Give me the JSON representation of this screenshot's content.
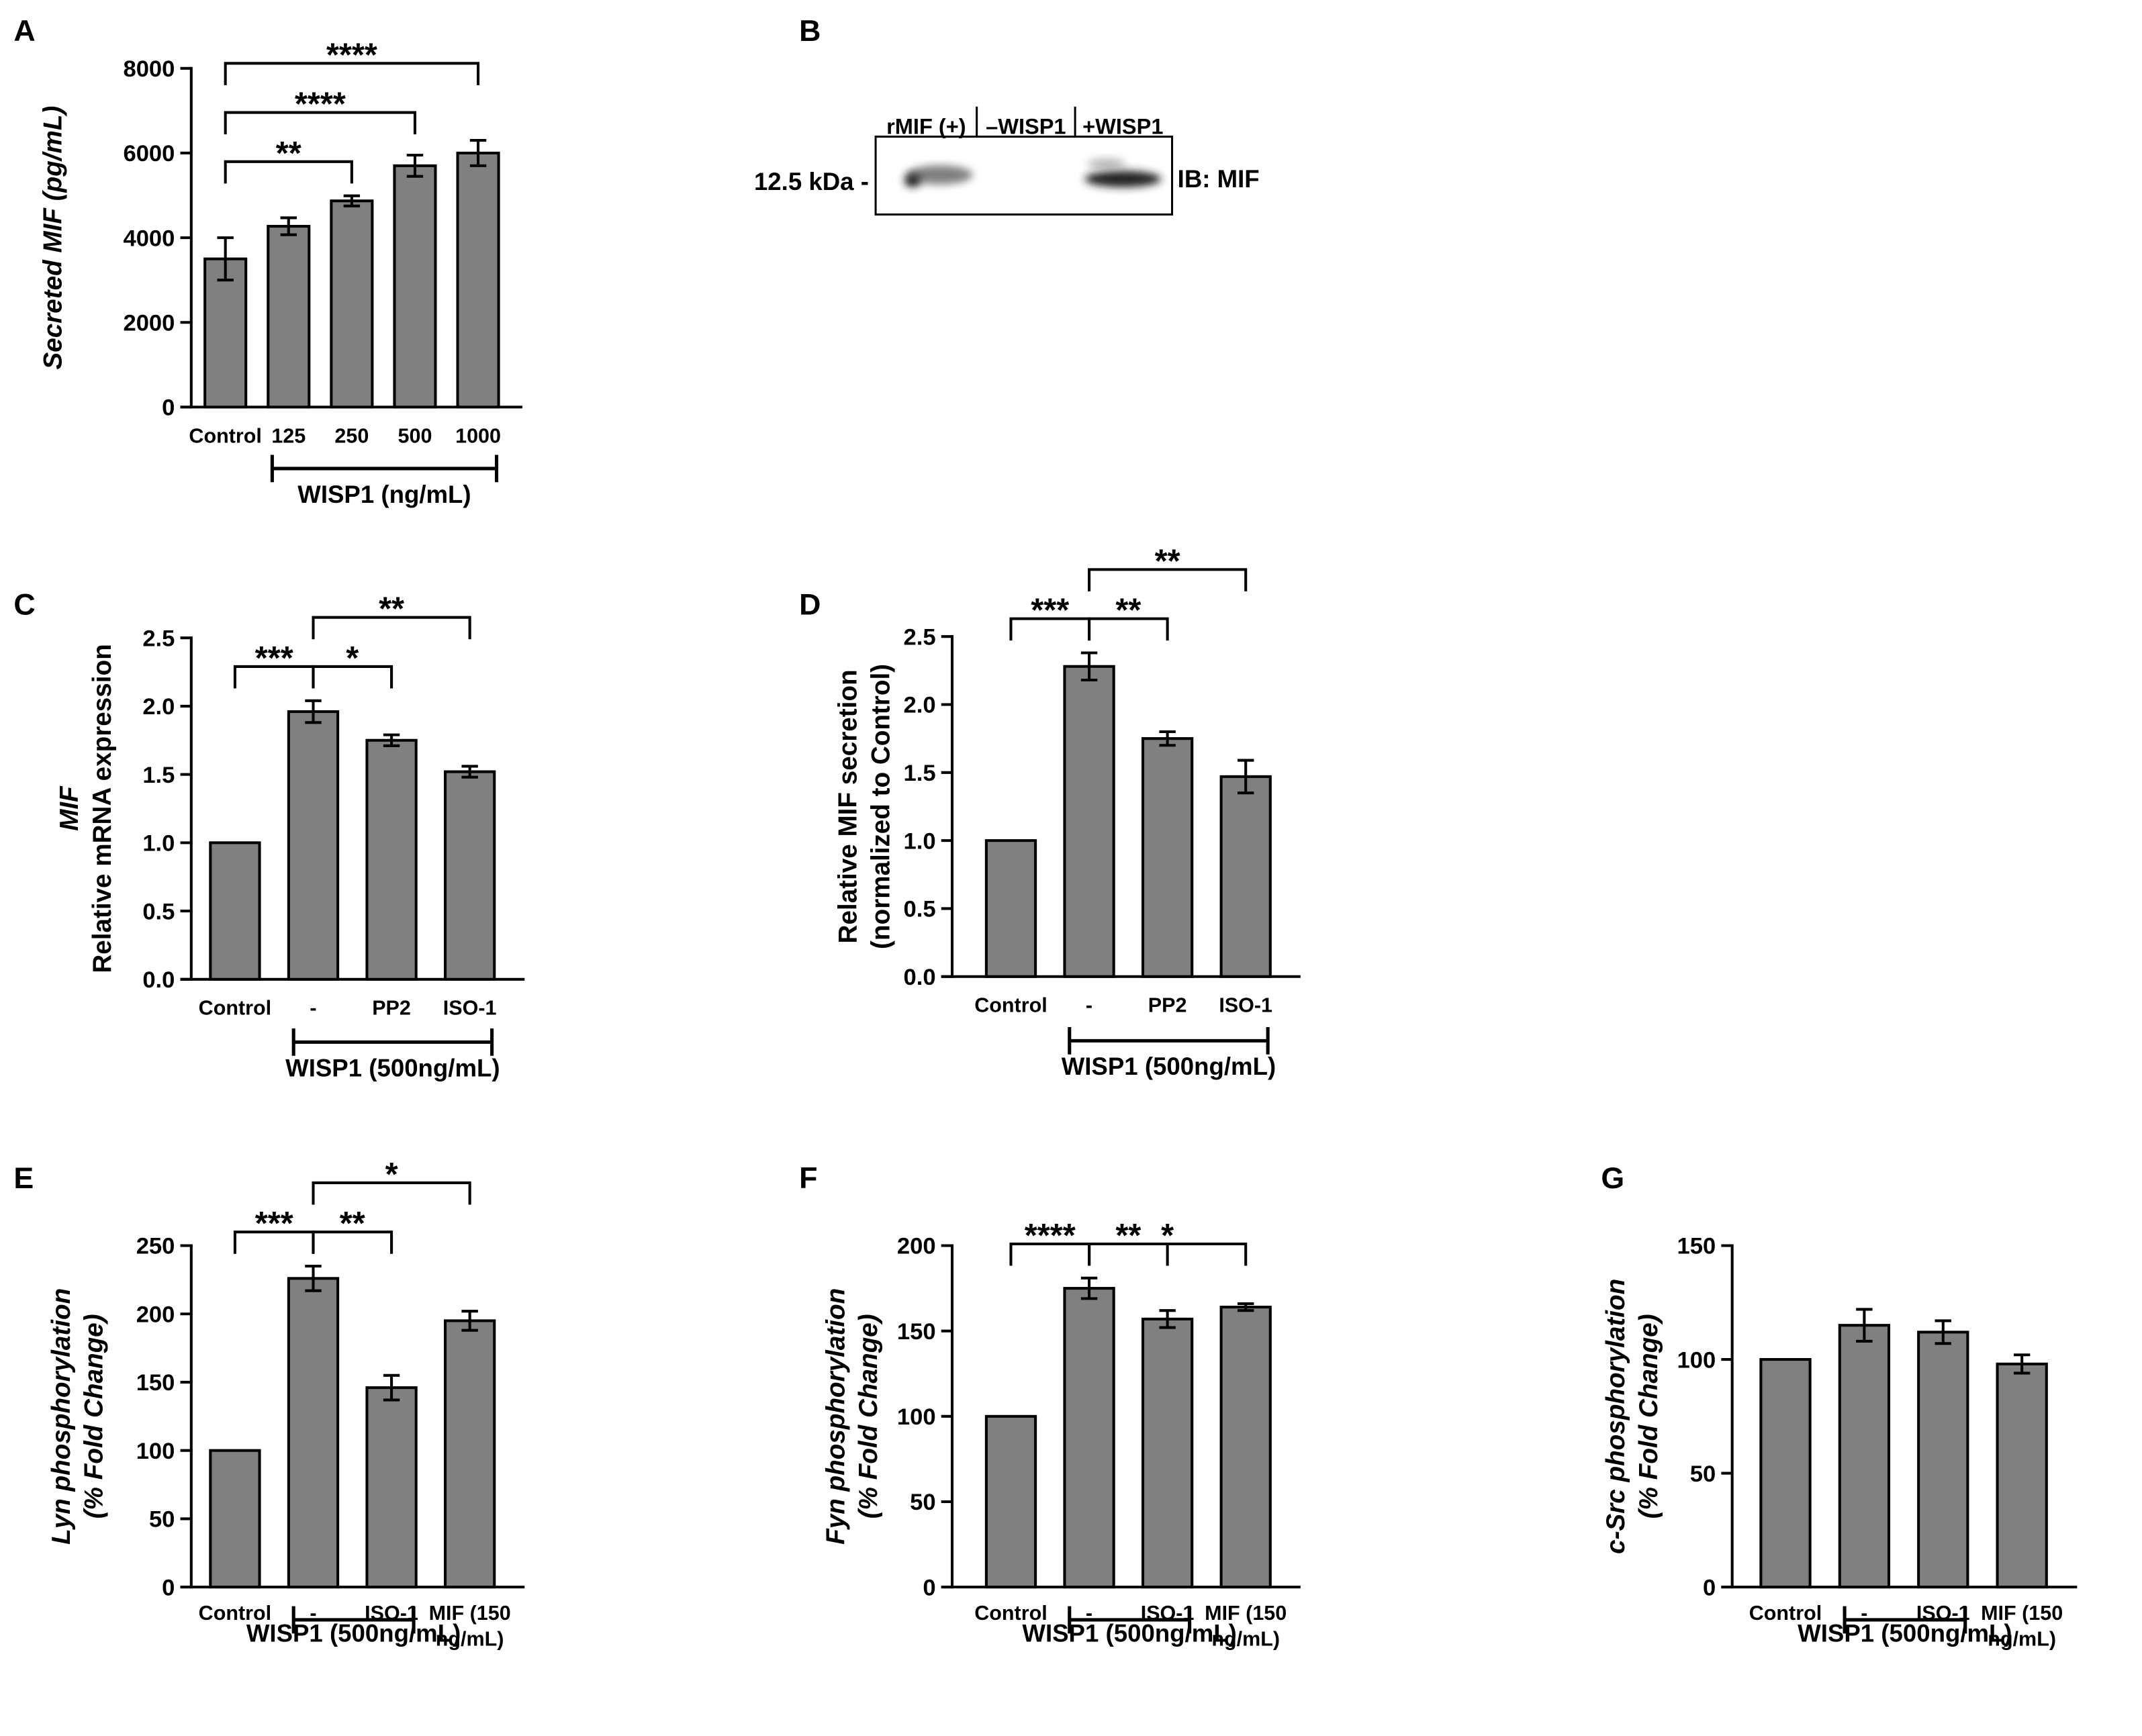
{
  "chart_data": [
    {
      "type": "bar",
      "panel": "A",
      "ylabel": [
        "Secreted MIF (pg/mL)"
      ],
      "ylabel_italic": [
        true
      ],
      "categories": [
        "Control",
        "125",
        "250",
        "500",
        "1000"
      ],
      "values": [
        3500,
        4270,
        4870,
        5700,
        6000
      ],
      "errors": [
        500,
        200,
        120,
        250,
        300
      ],
      "ylim": [
        0,
        8000
      ],
      "yticks": [
        0,
        2000,
        4000,
        6000,
        8000
      ],
      "color": "#808080",
      "group": {
        "label": "WISP1 (ng/mL)",
        "from": 1,
        "to": 4
      },
      "brackets": [
        {
          "from": 0,
          "to": 2,
          "label": "**"
        },
        {
          "from": 0,
          "to": 3,
          "label": "****"
        },
        {
          "from": 0,
          "to": 4,
          "label": "****"
        }
      ]
    },
    {
      "type": "bar",
      "panel": "C",
      "ylabel": [
        "MIF",
        "Relative mRNA expression"
      ],
      "ylabel_italic": [
        true,
        false
      ],
      "categories": [
        "Control",
        "-",
        "PP2",
        "ISO-1"
      ],
      "values": [
        1.0,
        1.96,
        1.75,
        1.52
      ],
      "errors": [
        null,
        0.08,
        0.04,
        0.04
      ],
      "ylim": [
        0,
        2.5
      ],
      "yticks": [
        {
          "value": 0,
          "label": "0.0"
        },
        {
          "value": 0.5,
          "label": "0.5"
        },
        {
          "value": 1,
          "label": "1.0"
        },
        {
          "value": 1.5,
          "label": "1.5"
        },
        {
          "value": 2,
          "label": "2.0"
        },
        {
          "value": 2.5,
          "label": "2.5"
        }
      ],
      "color": "#808080",
      "group": {
        "label": "WISP1 (500ng/mL)",
        "from": 1,
        "to": 3
      },
      "brackets": [
        {
          "from": 0,
          "to": 1,
          "label": "***"
        },
        {
          "from": 1,
          "to": 2,
          "label": "*"
        },
        {
          "from": 1,
          "to": 3,
          "label": "**"
        }
      ]
    },
    {
      "type": "bar",
      "panel": "D",
      "ylabel": [
        "Relative MIF secretion",
        "(normalized to Control)"
      ],
      "ylabel_italic": [
        false,
        false
      ],
      "categories": [
        "Control",
        "-",
        "PP2",
        "ISO-1"
      ],
      "values": [
        1.0,
        2.28,
        1.75,
        1.47
      ],
      "errors": [
        null,
        0.1,
        0.05,
        0.12
      ],
      "ylim": [
        0,
        2.5
      ],
      "yticks": [
        {
          "value": 0,
          "label": "0.0"
        },
        {
          "value": 0.5,
          "label": "0.5"
        },
        {
          "value": 1,
          "label": "1.0"
        },
        {
          "value": 1.5,
          "label": "1.5"
        },
        {
          "value": 2,
          "label": "2.0"
        },
        {
          "value": 2.5,
          "label": "2.5"
        }
      ],
      "color": "#808080",
      "group": {
        "label": "WISP1 (500ng/mL)",
        "from": 1,
        "to": 3
      },
      "brackets": [
        {
          "from": 0,
          "to": 1,
          "label": "***"
        },
        {
          "from": 1,
          "to": 2,
          "label": "**"
        },
        {
          "from": 1,
          "to": 3,
          "label": "**"
        }
      ]
    },
    {
      "type": "bar",
      "panel": "E",
      "ylabel": [
        "Lyn phosphorylation",
        "(% Fold Change)"
      ],
      "ylabel_italic": [
        true,
        true
      ],
      "categories": [
        "Control",
        "-",
        "ISO-1",
        "MIF (150 ng/mL)"
      ],
      "values": [
        100,
        226,
        146,
        195
      ],
      "errors": [
        null,
        9,
        9,
        7
      ],
      "ylim": [
        0,
        250
      ],
      "yticks": [
        0,
        50,
        100,
        150,
        200,
        250
      ],
      "color": "#808080",
      "group": {
        "label": "WISP1 (500ng/mL)",
        "from": 1,
        "to": 2
      },
      "brackets": [
        {
          "from": 0,
          "to": 1,
          "label": "***"
        },
        {
          "from": 1,
          "to": 2,
          "label": "**"
        },
        {
          "from": 1,
          "to": 3,
          "label": "*"
        }
      ]
    },
    {
      "type": "bar",
      "panel": "F",
      "ylabel": [
        "Fyn phosphorylation",
        "(% Fold Change)"
      ],
      "ylabel_italic": [
        true,
        true
      ],
      "categories": [
        "Control",
        "-",
        "ISO-1",
        "MIF (150 ng/mL)"
      ],
      "values": [
        100,
        175,
        157,
        164
      ],
      "errors": [
        null,
        6,
        5,
        2
      ],
      "ylim": [
        0,
        200
      ],
      "yticks": [
        0,
        50,
        100,
        150,
        200
      ],
      "color": "#808080",
      "group": {
        "label": "WISP1 (500ng/mL)",
        "from": 1,
        "to": 2
      },
      "brackets": [
        {
          "from": 0,
          "to": 1,
          "label": "****"
        },
        {
          "from": 1,
          "to": 3,
          "label": "*"
        },
        {
          "from": 1,
          "to": 2,
          "label": "**"
        }
      ]
    },
    {
      "type": "bar",
      "panel": "G",
      "ylabel": [
        "c-Src phosphorylation",
        "(% Fold Change)"
      ],
      "ylabel_italic": [
        true,
        true
      ],
      "categories": [
        "Control",
        "-",
        "ISO-1",
        "MIF (150 ng/mL)"
      ],
      "values": [
        100,
        115,
        112,
        98
      ],
      "errors": [
        null,
        7,
        5,
        4
      ],
      "ylim": [
        0,
        150
      ],
      "yticks": [
        0,
        50,
        100,
        150
      ],
      "color": "#808080",
      "group": {
        "label": "WISP1 (500ng/mL)",
        "from": 1,
        "to": 2
      },
      "brackets": []
    }
  ],
  "blot": {
    "panel": "B",
    "lanes": [
      "rMIF (+)",
      "–WISP1",
      "+WISP1"
    ],
    "marker": "12.5 kDa -",
    "antibody": "IB: MIF"
  }
}
